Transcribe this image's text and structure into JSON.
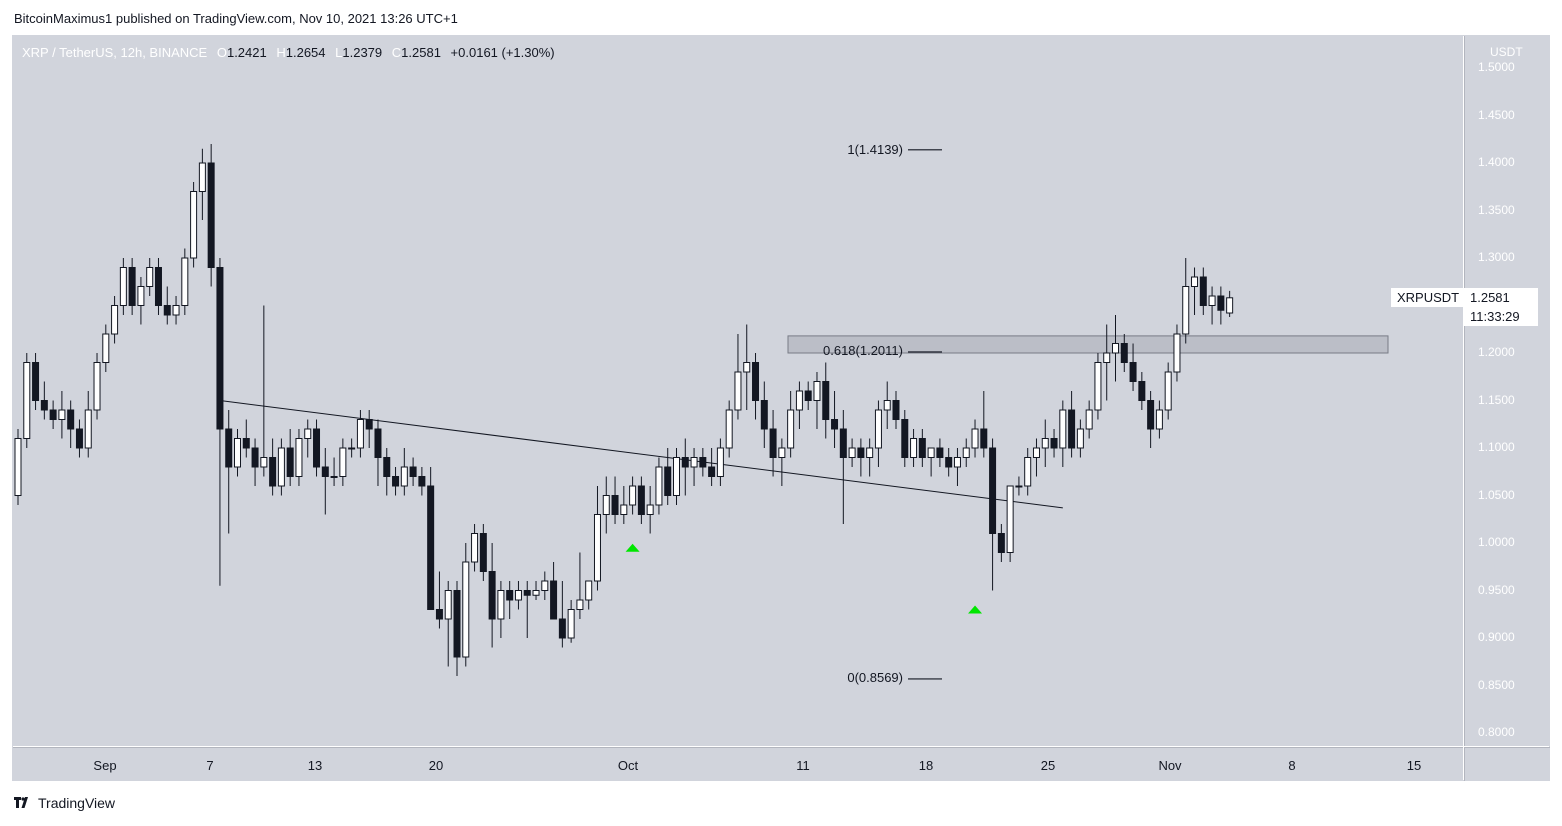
{
  "publisher_line": "BitcoinMaximus1 published on TradingView.com, Nov 10, 2021 13:26 UTC+1",
  "legend": {
    "symbol": "XRP / TetherUS, 12h, BINANCE",
    "open_label": "O",
    "open": "1.2421",
    "high_label": "H",
    "high": "1.2654",
    "low_label": "L",
    "low": "1.2379",
    "close_label": "C",
    "close": "1.2581",
    "change": "+0.0161 (+1.30%)"
  },
  "axis_unit": "USDT",
  "price_labels": [
    "1.5000",
    "1.4500",
    "1.4000",
    "1.3500",
    "1.3000",
    "1.2500",
    "1.2000",
    "1.1500",
    "1.1000",
    "1.0500",
    "1.0000",
    "0.9500",
    "0.9000",
    "0.8500",
    "0.8000"
  ],
  "time_labels": [
    "Sep",
    "7",
    "13",
    "20",
    "Oct",
    "11",
    "18",
    "25",
    "Nov",
    "8",
    "15"
  ],
  "fib_levels": {
    "level_1": "1(1.4139)",
    "level_0618": "0.618(1.2011)",
    "level_0": "0(0.8569)"
  },
  "symbol_tag": "XRPUSDT",
  "last_price": "1.2581",
  "countdown": "11:33:29",
  "brand": "TradingView",
  "colors": {
    "background": "#d1d4dc",
    "up_candle": "#ffffff",
    "down_candle": "#131722",
    "marker": "#00e600",
    "zone": "#b2b5be"
  },
  "chart_data": {
    "type": "candlestick",
    "interval": "12h",
    "ylim": [
      0.8,
      1.5
    ],
    "candles": [
      [
        1.05,
        1.12,
        1.04,
        1.11
      ],
      [
        1.11,
        1.2,
        1.1,
        1.19
      ],
      [
        1.19,
        1.2,
        1.14,
        1.15
      ],
      [
        1.15,
        1.17,
        1.13,
        1.14
      ],
      [
        1.14,
        1.15,
        1.12,
        1.13
      ],
      [
        1.13,
        1.16,
        1.11,
        1.14
      ],
      [
        1.14,
        1.15,
        1.1,
        1.12
      ],
      [
        1.12,
        1.13,
        1.09,
        1.1
      ],
      [
        1.1,
        1.16,
        1.09,
        1.14
      ],
      [
        1.14,
        1.2,
        1.13,
        1.19
      ],
      [
        1.19,
        1.23,
        1.18,
        1.22
      ],
      [
        1.22,
        1.26,
        1.21,
        1.25
      ],
      [
        1.25,
        1.3,
        1.24,
        1.29
      ],
      [
        1.29,
        1.3,
        1.24,
        1.25
      ],
      [
        1.25,
        1.28,
        1.23,
        1.27
      ],
      [
        1.27,
        1.3,
        1.26,
        1.29
      ],
      [
        1.29,
        1.3,
        1.24,
        1.25
      ],
      [
        1.25,
        1.27,
        1.23,
        1.24
      ],
      [
        1.24,
        1.26,
        1.23,
        1.25
      ],
      [
        1.25,
        1.31,
        1.24,
        1.3
      ],
      [
        1.3,
        1.38,
        1.29,
        1.37
      ],
      [
        1.37,
        1.415,
        1.34,
        1.4
      ],
      [
        1.4,
        1.42,
        1.27,
        1.29
      ],
      [
        1.29,
        1.3,
        0.955,
        1.12
      ],
      [
        1.12,
        1.14,
        1.01,
        1.08
      ],
      [
        1.08,
        1.12,
        1.07,
        1.11
      ],
      [
        1.11,
        1.13,
        1.09,
        1.1
      ],
      [
        1.1,
        1.11,
        1.06,
        1.08
      ],
      [
        1.08,
        1.25,
        1.07,
        1.09
      ],
      [
        1.09,
        1.11,
        1.05,
        1.06
      ],
      [
        1.06,
        1.11,
        1.05,
        1.1
      ],
      [
        1.1,
        1.12,
        1.06,
        1.07
      ],
      [
        1.07,
        1.12,
        1.06,
        1.11
      ],
      [
        1.11,
        1.13,
        1.09,
        1.12
      ],
      [
        1.12,
        1.13,
        1.07,
        1.08
      ],
      [
        1.08,
        1.1,
        1.03,
        1.07
      ],
      [
        1.07,
        1.09,
        1.06,
        1.07
      ],
      [
        1.07,
        1.11,
        1.06,
        1.1
      ],
      [
        1.1,
        1.11,
        1.09,
        1.1
      ],
      [
        1.1,
        1.14,
        1.09,
        1.13
      ],
      [
        1.13,
        1.14,
        1.1,
        1.12
      ],
      [
        1.12,
        1.13,
        1.06,
        1.09
      ],
      [
        1.09,
        1.1,
        1.05,
        1.07
      ],
      [
        1.07,
        1.08,
        1.05,
        1.06
      ],
      [
        1.06,
        1.1,
        1.05,
        1.08
      ],
      [
        1.08,
        1.09,
        1.06,
        1.07
      ],
      [
        1.07,
        1.08,
        1.05,
        1.06
      ],
      [
        1.06,
        1.08,
        0.93,
        0.93
      ],
      [
        0.93,
        0.97,
        0.91,
        0.92
      ],
      [
        0.92,
        0.96,
        0.87,
        0.95
      ],
      [
        0.95,
        0.96,
        0.86,
        0.88
      ],
      [
        0.88,
        1.0,
        0.87,
        0.98
      ],
      [
        0.98,
        1.02,
        0.97,
        1.01
      ],
      [
        1.01,
        1.02,
        0.96,
        0.97
      ],
      [
        0.97,
        1.0,
        0.89,
        0.92
      ],
      [
        0.92,
        0.96,
        0.9,
        0.95
      ],
      [
        0.95,
        0.96,
        0.92,
        0.94
      ],
      [
        0.94,
        0.96,
        0.93,
        0.95
      ],
      [
        0.95,
        0.96,
        0.9,
        0.945
      ],
      [
        0.945,
        0.96,
        0.94,
        0.95
      ],
      [
        0.95,
        0.97,
        0.94,
        0.96
      ],
      [
        0.96,
        0.98,
        0.92,
        0.92
      ],
      [
        0.92,
        0.96,
        0.89,
        0.9
      ],
      [
        0.9,
        0.94,
        0.895,
        0.93
      ],
      [
        0.93,
        0.99,
        0.92,
        0.94
      ],
      [
        0.94,
        0.96,
        0.93,
        0.96
      ],
      [
        0.96,
        1.06,
        0.95,
        1.03
      ],
      [
        1.03,
        1.07,
        1.01,
        1.05
      ],
      [
        1.05,
        1.07,
        1.02,
        1.03
      ],
      [
        1.03,
        1.06,
        1.02,
        1.04
      ],
      [
        1.04,
        1.07,
        1.03,
        1.06
      ],
      [
        1.06,
        1.07,
        1.02,
        1.03
      ],
      [
        1.03,
        1.06,
        1.01,
        1.04
      ],
      [
        1.04,
        1.09,
        1.03,
        1.08
      ],
      [
        1.08,
        1.1,
        1.04,
        1.05
      ],
      [
        1.05,
        1.1,
        1.04,
        1.09
      ],
      [
        1.09,
        1.11,
        1.05,
        1.08
      ],
      [
        1.08,
        1.1,
        1.06,
        1.09
      ],
      [
        1.09,
        1.1,
        1.07,
        1.08
      ],
      [
        1.08,
        1.1,
        1.06,
        1.07
      ],
      [
        1.07,
        1.11,
        1.06,
        1.1
      ],
      [
        1.1,
        1.15,
        1.09,
        1.14
      ],
      [
        1.14,
        1.22,
        1.13,
        1.18
      ],
      [
        1.18,
        1.23,
        1.14,
        1.19
      ],
      [
        1.19,
        1.2,
        1.13,
        1.15
      ],
      [
        1.15,
        1.17,
        1.1,
        1.12
      ],
      [
        1.12,
        1.14,
        1.07,
        1.09
      ],
      [
        1.09,
        1.11,
        1.06,
        1.1
      ],
      [
        1.1,
        1.16,
        1.09,
        1.14
      ],
      [
        1.14,
        1.17,
        1.12,
        1.16
      ],
      [
        1.16,
        1.17,
        1.14,
        1.15
      ],
      [
        1.15,
        1.18,
        1.12,
        1.17
      ],
      [
        1.17,
        1.19,
        1.11,
        1.13
      ],
      [
        1.13,
        1.16,
        1.1,
        1.12
      ],
      [
        1.12,
        1.14,
        1.02,
        1.09
      ],
      [
        1.09,
        1.11,
        1.08,
        1.1
      ],
      [
        1.1,
        1.11,
        1.07,
        1.09
      ],
      [
        1.09,
        1.11,
        1.07,
        1.1
      ],
      [
        1.1,
        1.15,
        1.08,
        1.14
      ],
      [
        1.14,
        1.17,
        1.12,
        1.15
      ],
      [
        1.15,
        1.16,
        1.12,
        1.13
      ],
      [
        1.13,
        1.14,
        1.08,
        1.09
      ],
      [
        1.09,
        1.12,
        1.08,
        1.11
      ],
      [
        1.11,
        1.12,
        1.08,
        1.09
      ],
      [
        1.09,
        1.1,
        1.07,
        1.1
      ],
      [
        1.1,
        1.11,
        1.08,
        1.09
      ],
      [
        1.09,
        1.1,
        1.07,
        1.08
      ],
      [
        1.08,
        1.1,
        1.06,
        1.09
      ],
      [
        1.09,
        1.11,
        1.08,
        1.1
      ],
      [
        1.1,
        1.13,
        1.09,
        1.12
      ],
      [
        1.12,
        1.16,
        1.09,
        1.1
      ],
      [
        1.1,
        1.11,
        0.95,
        1.01
      ],
      [
        1.01,
        1.02,
        0.98,
        0.99
      ],
      [
        0.99,
        1.06,
        0.98,
        1.06
      ],
      [
        1.06,
        1.07,
        1.05,
        1.06
      ],
      [
        1.06,
        1.1,
        1.05,
        1.09
      ],
      [
        1.09,
        1.11,
        1.07,
        1.1
      ],
      [
        1.1,
        1.13,
        1.08,
        1.11
      ],
      [
        1.11,
        1.12,
        1.09,
        1.1
      ],
      [
        1.1,
        1.15,
        1.08,
        1.14
      ],
      [
        1.14,
        1.16,
        1.09,
        1.1
      ],
      [
        1.1,
        1.13,
        1.09,
        1.12
      ],
      [
        1.12,
        1.15,
        1.11,
        1.14
      ],
      [
        1.14,
        1.2,
        1.13,
        1.19
      ],
      [
        1.19,
        1.23,
        1.15,
        1.2
      ],
      [
        1.2,
        1.24,
        1.17,
        1.21
      ],
      [
        1.21,
        1.22,
        1.18,
        1.19
      ],
      [
        1.19,
        1.21,
        1.16,
        1.17
      ],
      [
        1.17,
        1.18,
        1.14,
        1.15
      ],
      [
        1.15,
        1.16,
        1.1,
        1.12
      ],
      [
        1.12,
        1.15,
        1.11,
        1.14
      ],
      [
        1.14,
        1.19,
        1.13,
        1.18
      ],
      [
        1.18,
        1.23,
        1.17,
        1.22
      ],
      [
        1.22,
        1.3,
        1.21,
        1.27
      ],
      [
        1.27,
        1.29,
        1.24,
        1.28
      ],
      [
        1.28,
        1.29,
        1.24,
        1.25
      ],
      [
        1.25,
        1.27,
        1.23,
        1.26
      ],
      [
        1.26,
        1.27,
        1.23,
        1.245
      ],
      [
        1.2421,
        1.2654,
        1.2379,
        1.2581
      ]
    ],
    "fib_retracement": [
      {
        "ratio": 1,
        "price": 1.4139
      },
      {
        "ratio": 0.618,
        "price": 1.2011
      },
      {
        "ratio": 0,
        "price": 0.8569
      }
    ],
    "resistance_zone": [
      1.2,
      1.218
    ],
    "trendline": [
      [
        23,
        1.15
      ],
      [
        119,
        1.037
      ]
    ],
    "markers": [
      {
        "index": 70,
        "price": 0.995
      },
      {
        "index": 109,
        "price": 0.93
      }
    ]
  }
}
